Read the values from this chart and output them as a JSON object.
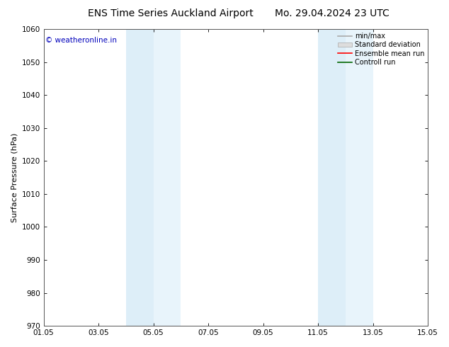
{
  "title_left": "ENS Time Series Auckland Airport",
  "title_right": "Mo. 29.04.2024 23 UTC",
  "ylabel": "Surface Pressure (hPa)",
  "ylim": [
    970,
    1060
  ],
  "yticks": [
    970,
    980,
    990,
    1000,
    1010,
    1020,
    1030,
    1040,
    1050,
    1060
  ],
  "xlim_start": 0,
  "xlim_end": 14,
  "xtick_positions": [
    0,
    2,
    4,
    6,
    8,
    10,
    12,
    14
  ],
  "xtick_labels": [
    "01.05",
    "03.05",
    "05.05",
    "07.05",
    "09.05",
    "11.05",
    "13.05",
    "15.05"
  ],
  "shaded_bands": [
    {
      "x_start": 3.0,
      "x_end": 4.0,
      "color": "#ddeef8"
    },
    {
      "x_start": 4.0,
      "x_end": 5.0,
      "color": "#e8f4fb"
    },
    {
      "x_start": 10.0,
      "x_end": 11.0,
      "color": "#ddeef8"
    },
    {
      "x_start": 11.0,
      "x_end": 12.0,
      "color": "#e8f4fb"
    }
  ],
  "copyright_text": "© weatheronline.in",
  "copyright_color": "#0000bb",
  "legend_items": [
    {
      "label": "min/max",
      "color": "#aaaaaa",
      "type": "line"
    },
    {
      "label": "Standard deviation",
      "color": "#dddddd",
      "type": "box"
    },
    {
      "label": "Ensemble mean run",
      "color": "#ff0000",
      "type": "line"
    },
    {
      "label": "Controll run",
      "color": "#006600",
      "type": "line"
    }
  ],
  "bg_color": "#ffffff",
  "plot_bg_color": "#ffffff",
  "tick_color": "#000000",
  "spine_color": "#555555",
  "title_fontsize": 10,
  "label_fontsize": 8,
  "tick_fontsize": 7.5
}
